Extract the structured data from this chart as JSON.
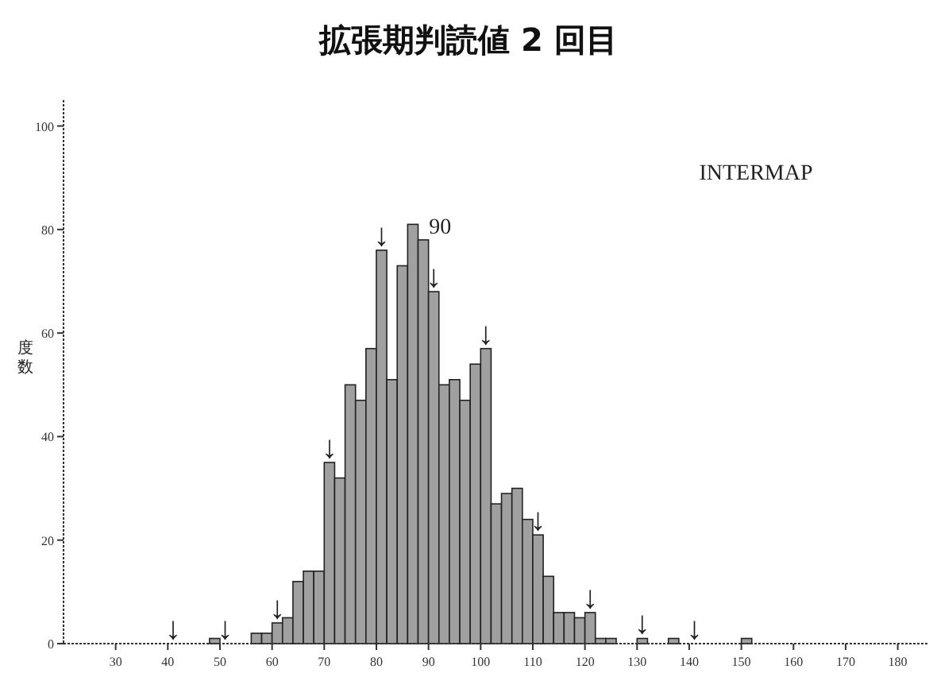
{
  "chart_data": {
    "type": "histogram",
    "title": "拡張期判読値 2 回目",
    "ylabel": "度数",
    "bins": [
      40,
      42,
      44,
      46,
      48,
      50,
      52,
      54,
      56,
      58,
      60,
      62,
      64,
      66,
      68,
      70,
      72,
      74,
      76,
      78,
      80,
      82,
      84,
      86,
      88,
      90,
      92,
      94,
      96,
      98,
      100,
      102,
      104,
      106,
      108,
      110,
      112,
      114,
      116,
      118,
      120,
      122,
      124,
      126,
      128,
      130,
      132,
      134,
      136,
      138,
      140,
      142,
      144,
      146,
      148,
      150,
      152
    ],
    "values": [
      0,
      0,
      0,
      0,
      1,
      0,
      0,
      0,
      2,
      2,
      4,
      5,
      12,
      14,
      14,
      35,
      32,
      50,
      47,
      57,
      76,
      51,
      73,
      81,
      78,
      68,
      50,
      51,
      47,
      54,
      57,
      27,
      29,
      30,
      24,
      21,
      13,
      6,
      6,
      5,
      6,
      1,
      1,
      0,
      0,
      1,
      0,
      0,
      1,
      0,
      0,
      0,
      0,
      0,
      0,
      1
    ],
    "color": "#a0a0a0",
    "xlim": [
      20,
      186
    ],
    "ylim": [
      0,
      105
    ],
    "xticks": [
      30,
      40,
      50,
      60,
      70,
      80,
      90,
      100,
      110,
      120,
      130,
      140,
      150,
      160,
      170,
      180
    ],
    "yticks": [
      0,
      20,
      40,
      60,
      80,
      100
    ],
    "grid": false,
    "annotations": [
      "90",
      "INTERMAP",
      {
        "text": "↓",
        "x": 41,
        "y": 0
      },
      {
        "text": "↓",
        "x": 51,
        "y": 0
      },
      {
        "text": "↓",
        "x": 61,
        "y": 4
      },
      {
        "text": "↓",
        "x": 71,
        "y": 35
      },
      {
        "text": "↓",
        "x": 81,
        "y": 76
      },
      {
        "text": "↓",
        "x": 91,
        "y": 68
      },
      {
        "text": "↓",
        "x": 101,
        "y": 57
      },
      {
        "text": "↓",
        "x": 111,
        "y": 21
      },
      {
        "text": "↓",
        "x": 121,
        "y": 6
      },
      {
        "text": "↓",
        "x": 131,
        "y": 1
      },
      {
        "text": "↓",
        "x": 141,
        "y": 0
      }
    ]
  }
}
